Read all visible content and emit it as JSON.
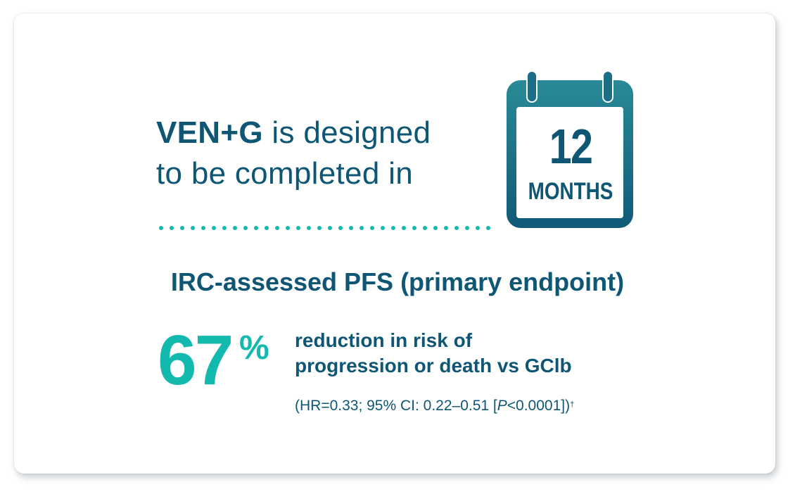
{
  "headline": {
    "brand": "VEN+G",
    "rest_line1": " is designed",
    "line2": "to be completed in"
  },
  "calendar": {
    "icon": "calendar-icon",
    "number": "12",
    "unit": "MONTHS"
  },
  "section_title": "IRC-assessed PFS (primary endpoint)",
  "stat": {
    "value": "67",
    "unit": "%",
    "description_line1": "reduction in risk of",
    "description_line2": "progression or death vs GClb",
    "details_prefix": "(HR=0.33; 95% CI: 0.22–0.51 [",
    "details_p": "P",
    "details_suffix": "<0.0001])",
    "footnote_mark": "†"
  },
  "colors": {
    "primary": "#0f5675",
    "accent": "#14b9ae"
  }
}
